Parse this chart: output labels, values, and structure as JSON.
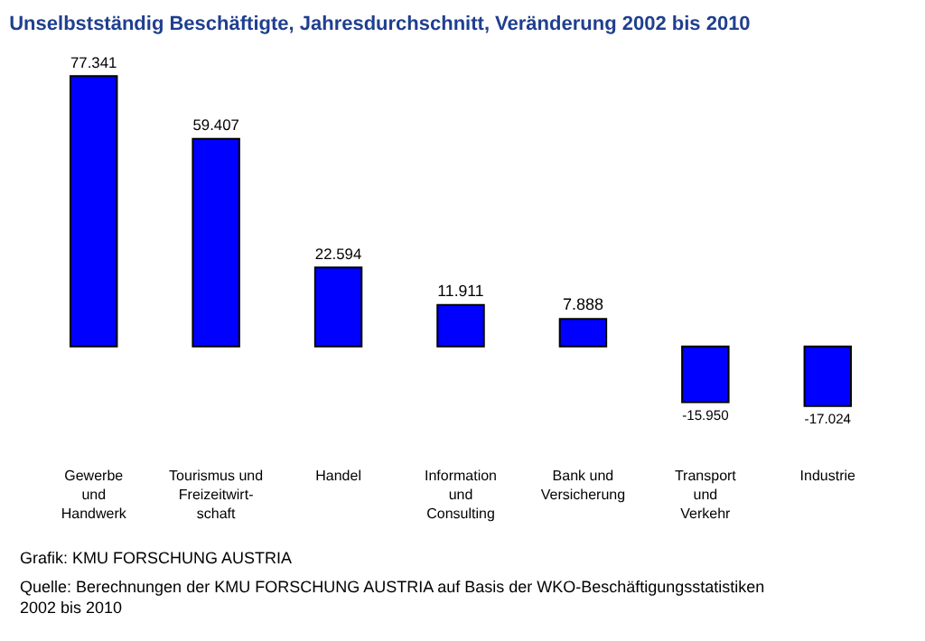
{
  "chart_data": {
    "type": "bar",
    "title": "Unselbstständig Beschäftigte, Jahresdurchschnitt, Veränderung 2002 bis 2010",
    "categories": [
      "Gewerbe\nund\nHandwerk",
      "Tourismus und\nFreizeitwirt-\nschaft",
      "Handel",
      "Information\nund\nConsulting",
      "Bank und\nVersicherung",
      "Transport\nund\nVerkehr",
      "Industrie"
    ],
    "values": [
      77341,
      59407,
      22594,
      11911,
      7888,
      -15950,
      -17024
    ],
    "value_labels": [
      "77.341",
      "59.407",
      "22.594",
      "11.911",
      "7.888",
      "-15.950",
      "-17.024"
    ],
    "color": "#0000ff",
    "annotations": [
      "Grafik: KMU FORSCHUNG AUSTRIA",
      "Quelle: Berechnungen der KMU FORSCHUNG AUSTRIA auf Basis der WKO-Beschäftigungsstatistiken\n2002 bis 2010"
    ]
  }
}
